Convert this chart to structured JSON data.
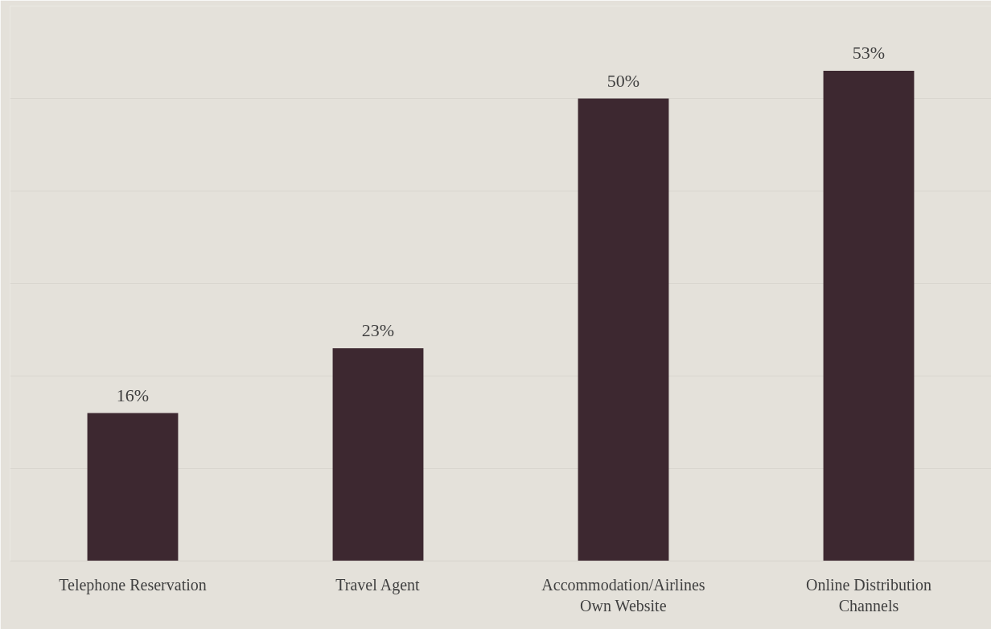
{
  "chart_data": {
    "type": "bar",
    "categories": [
      "Telephone Reservation",
      "Travel Agent",
      "Accommodation/Airlines Own Website",
      "Online Distribution Channels"
    ],
    "values": [
      16,
      23,
      50,
      53
    ],
    "value_labels": [
      "16%",
      "23%",
      "50%",
      "53%"
    ],
    "color": "#3d2830",
    "ylim": [
      0,
      60
    ],
    "yticks": [
      {
        "value": 0,
        "label": null
      },
      {
        "value": 10,
        "label": null
      },
      {
        "value": 20,
        "label": null
      },
      {
        "value": 30,
        "label": null
      },
      {
        "value": 40,
        "label": null
      },
      {
        "value": 50,
        "label": null
      },
      {
        "value": 60,
        "label": null
      }
    ],
    "tick_labels": "x",
    "grid": "y"
  }
}
